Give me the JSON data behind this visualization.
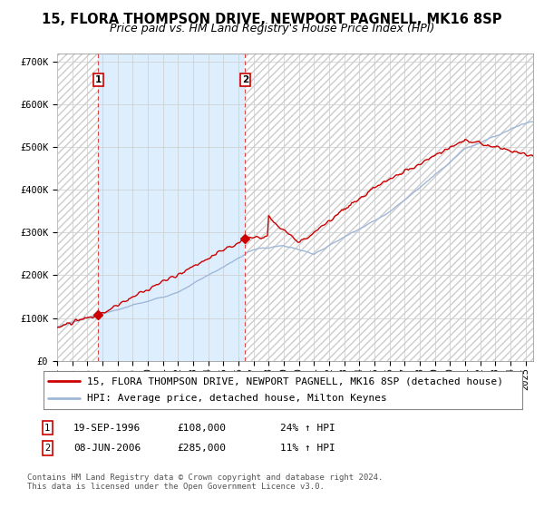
{
  "title": "15, FLORA THOMPSON DRIVE, NEWPORT PAGNELL, MK16 8SP",
  "subtitle": "Price paid vs. HM Land Registry's House Price Index (HPI)",
  "legend_line1": "15, FLORA THOMPSON DRIVE, NEWPORT PAGNELL, MK16 8SP (detached house)",
  "legend_line2": "HPI: Average price, detached house, Milton Keynes",
  "annotation1_label": "1",
  "annotation1_date": "19-SEP-1996",
  "annotation1_price": "£108,000",
  "annotation1_hpi": "24% ↑ HPI",
  "annotation2_label": "2",
  "annotation2_date": "08-JUN-2006",
  "annotation2_price": "£285,000",
  "annotation2_hpi": "11% ↑ HPI",
  "footer": "Contains HM Land Registry data © Crown copyright and database right 2024.\nThis data is licensed under the Open Government Licence v3.0.",
  "hpi_line_color": "#a0b8d8",
  "price_line_color": "#cc0000",
  "marker_color": "#cc0000",
  "vline1_color": "#dd4444",
  "vline2_color": "#dd4444",
  "annotation_box_color": "#cc0000",
  "shaded_region_color": "#ddeeff",
  "background_color": "#ffffff",
  "grid_color": "#cccccc",
  "ylim": [
    0,
    720000
  ],
  "yticks": [
    0,
    100000,
    200000,
    300000,
    400000,
    500000,
    600000,
    700000
  ],
  "ytick_labels": [
    "£0",
    "£100K",
    "£200K",
    "£300K",
    "£400K",
    "£500K",
    "£600K",
    "£700K"
  ],
  "start_year": 1994.0,
  "end_year": 2025.5,
  "sale1_year": 1996.72,
  "sale1_price": 108000,
  "sale2_year": 2006.44,
  "sale2_price": 285000,
  "title_fontsize": 10.5,
  "subtitle_fontsize": 9,
  "tick_fontsize": 7.5,
  "legend_fontsize": 8,
  "annotation_fontsize": 8,
  "footer_fontsize": 6.5
}
